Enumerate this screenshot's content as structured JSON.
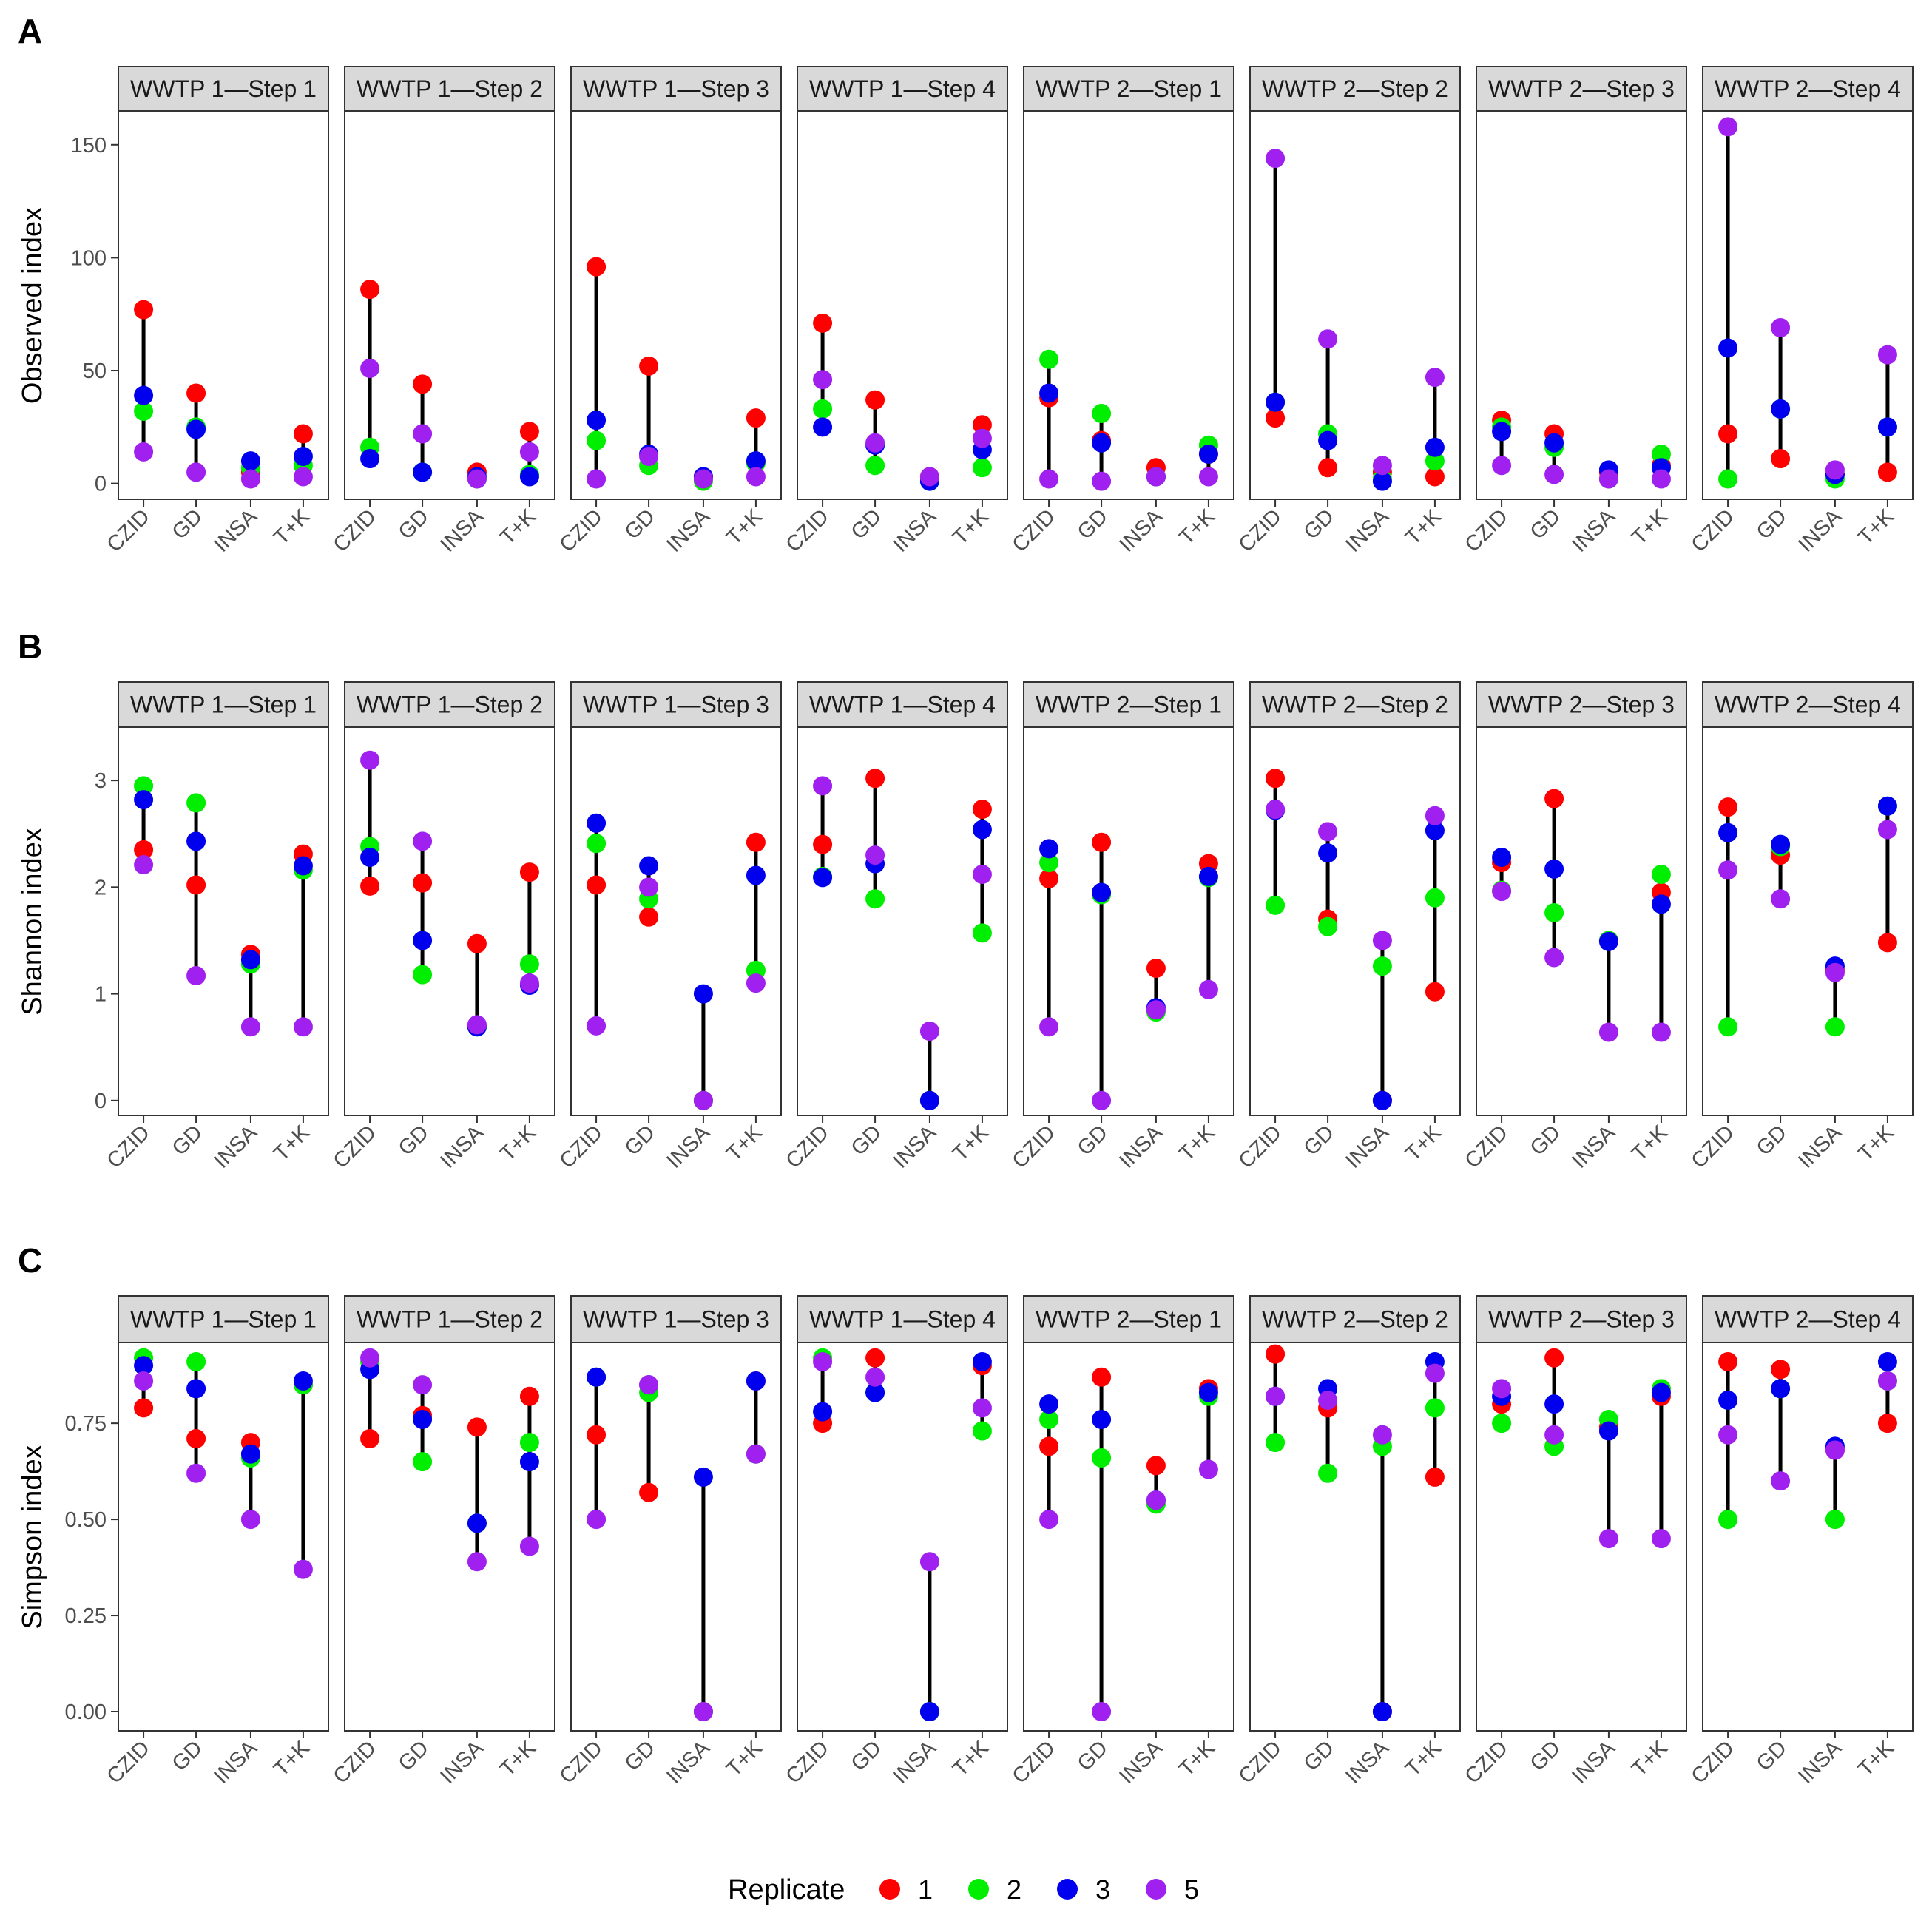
{
  "chart_data": {
    "type": "scatter",
    "facets": [
      "WWTP 1—Step 1",
      "WWTP 1—Step 2",
      "WWTP 1—Step 3",
      "WWTP 1—Step 4",
      "WWTP 2—Step 1",
      "WWTP 2—Step 2",
      "WWTP 2—Step 3",
      "WWTP 2—Step 4"
    ],
    "categories": [
      "CZID",
      "GD",
      "INSA",
      "T+K"
    ],
    "legend": {
      "title": "Replicate",
      "position": "bottom",
      "items": [
        {
          "label": "1",
          "color": "#ff0000"
        },
        {
          "label": "2",
          "color": "#00ee00"
        },
        {
          "label": "3",
          "color": "#0000ee"
        },
        {
          "label": "5",
          "color": "#a020f0"
        }
      ]
    },
    "rows": [
      {
        "letter": "A",
        "ylabel": "Observed index",
        "ylim": [
          -7,
          165
        ],
        "yticks": [
          0,
          50,
          100,
          150
        ],
        "ytick_labels": [
          "0",
          "50",
          "100",
          "150"
        ],
        "data": [
          [
            [
              77,
              32,
              39,
              14
            ],
            [
              40,
              25,
              24,
              5
            ],
            [
              5,
              7,
              10,
              2
            ],
            [
              22,
              8,
              12,
              3
            ]
          ],
          [
            [
              86,
              16,
              11,
              51
            ],
            [
              44,
              5,
              5,
              22
            ],
            [
              5,
              2,
              3,
              2
            ],
            [
              23,
              4,
              3,
              14
            ]
          ],
          [
            [
              96,
              19,
              28,
              2
            ],
            [
              52,
              8,
              13,
              12
            ],
            [
              3,
              1,
              3,
              2
            ],
            [
              29,
              9,
              10,
              3
            ]
          ],
          [
            [
              71,
              33,
              25,
              46
            ],
            [
              37,
              8,
              17,
              18
            ],
            [
              3,
              1,
              1,
              3
            ],
            [
              26,
              7,
              15,
              20
            ]
          ],
          [
            [
              38,
              55,
              40,
              2
            ],
            [
              19,
              31,
              18,
              1
            ],
            [
              7,
              3,
              3,
              3
            ],
            [
              13,
              17,
              13,
              3
            ]
          ],
          [
            [
              29,
              36,
              36,
              144
            ],
            [
              7,
              22,
              19,
              64
            ],
            [
              5,
              2,
              1,
              8
            ],
            [
              3,
              10,
              16,
              47
            ]
          ],
          [
            [
              28,
              25,
              23,
              8
            ],
            [
              22,
              16,
              18,
              4
            ],
            [
              5,
              2,
              6,
              2
            ],
            [
              8,
              13,
              7,
              2
            ]
          ],
          [
            [
              22,
              2,
              60,
              158
            ],
            [
              11,
              33,
              33,
              69
            ],
            [
              4,
              2,
              4,
              6
            ],
            [
              5,
              25,
              25,
              57
            ]
          ]
        ]
      },
      {
        "letter": "B",
        "ylabel": "Shannon index",
        "ylim": [
          -0.14,
          3.5
        ],
        "yticks": [
          0,
          1,
          2,
          3
        ],
        "ytick_labels": [
          "0",
          "1",
          "2",
          "3"
        ],
        "data": [
          [
            [
              2.35,
              2.95,
              2.82,
              2.21
            ],
            [
              2.02,
              2.79,
              2.43,
              1.17
            ],
            [
              1.37,
              1.28,
              1.32,
              0.69
            ],
            [
              2.31,
              2.16,
              2.2,
              0.69
            ]
          ],
          [
            [
              2.01,
              2.38,
              2.28,
              3.19
            ],
            [
              2.04,
              1.18,
              1.5,
              2.43
            ],
            [
              1.47,
              0.69,
              0.69,
              0.71
            ],
            [
              2.14,
              1.28,
              1.08,
              1.1
            ]
          ],
          [
            [
              2.02,
              2.41,
              2.6,
              0.7
            ],
            [
              1.72,
              1.89,
              2.2,
              2.0
            ],
            [
              0.0,
              0.0,
              1.0,
              0.0
            ],
            [
              2.42,
              1.22,
              2.11,
              1.1
            ]
          ],
          [
            [
              2.4,
              2.1,
              2.09,
              2.95
            ],
            [
              3.02,
              1.89,
              2.22,
              2.3
            ],
            [
              0.0,
              0.0,
              0.0,
              0.65
            ],
            [
              2.73,
              1.57,
              2.54,
              2.12
            ]
          ],
          [
            [
              2.08,
              2.23,
              2.36,
              0.69
            ],
            [
              2.42,
              1.93,
              1.95,
              0.0
            ],
            [
              1.24,
              0.83,
              0.87,
              0.85
            ],
            [
              2.22,
              2.09,
              2.1,
              1.04
            ]
          ],
          [
            [
              3.02,
              1.83,
              2.72,
              2.73
            ],
            [
              1.7,
              1.63,
              2.32,
              2.52
            ],
            [
              0.0,
              1.26,
              0.0,
              1.5
            ],
            [
              1.02,
              1.9,
              2.53,
              2.67
            ]
          ],
          [
            [
              2.23,
              1.97,
              2.28,
              1.96
            ],
            [
              2.83,
              1.76,
              2.17,
              1.34
            ],
            [
              1.5,
              1.5,
              1.49,
              0.64
            ],
            [
              1.95,
              2.12,
              1.84,
              0.64
            ]
          ],
          [
            [
              2.75,
              0.69,
              2.51,
              2.16
            ],
            [
              2.3,
              2.38,
              2.4,
              1.89
            ],
            [
              1.22,
              0.69,
              1.26,
              1.2
            ],
            [
              1.48,
              2.76,
              2.76,
              2.54
            ]
          ]
        ]
      },
      {
        "letter": "C",
        "ylabel": "Simpson index",
        "ylim": [
          -0.05,
          0.96
        ],
        "yticks": [
          0.0,
          0.25,
          0.5,
          0.75
        ],
        "ytick_labels": [
          "0.00",
          "0.25",
          "0.50",
          "0.75"
        ],
        "data": [
          [
            [
              0.79,
              0.92,
              0.9,
              0.86
            ],
            [
              0.71,
              0.91,
              0.84,
              0.62
            ],
            [
              0.7,
              0.66,
              0.67,
              0.5
            ],
            [
              0.85,
              0.85,
              0.86,
              0.37
            ]
          ],
          [
            [
              0.71,
              0.91,
              0.89,
              0.92
            ],
            [
              0.77,
              0.65,
              0.76,
              0.85
            ],
            [
              0.74,
              0.49,
              0.49,
              0.39
            ],
            [
              0.82,
              0.7,
              0.65,
              0.43
            ]
          ],
          [
            [
              0.72,
              0.87,
              0.87,
              0.5
            ],
            [
              0.57,
              0.83,
              0.85,
              0.85
            ],
            [
              0.0,
              0.0,
              0.61,
              0.0
            ],
            [
              0.86,
              0.67,
              0.86,
              0.67
            ]
          ],
          [
            [
              0.75,
              0.92,
              0.78,
              0.91
            ],
            [
              0.92,
              0.83,
              0.83,
              0.87
            ],
            [
              0.0,
              0.0,
              0.0,
              0.39
            ],
            [
              0.9,
              0.73,
              0.91,
              0.79
            ]
          ],
          [
            [
              0.69,
              0.76,
              0.8,
              0.5
            ],
            [
              0.87,
              0.66,
              0.76,
              0.0
            ],
            [
              0.64,
              0.54,
              0.55,
              0.55
            ],
            [
              0.84,
              0.82,
              0.83,
              0.63
            ]
          ],
          [
            [
              0.93,
              0.7,
              0.82,
              0.82
            ],
            [
              0.79,
              0.62,
              0.84,
              0.81
            ],
            [
              0.0,
              0.69,
              0.0,
              0.72
            ],
            [
              0.61,
              0.79,
              0.91,
              0.88
            ]
          ],
          [
            [
              0.8,
              0.75,
              0.82,
              0.84
            ],
            [
              0.92,
              0.69,
              0.8,
              0.72
            ],
            [
              0.74,
              0.76,
              0.73,
              0.45
            ],
            [
              0.82,
              0.84,
              0.83,
              0.45
            ]
          ],
          [
            [
              0.91,
              0.5,
              0.81,
              0.72
            ],
            [
              0.89,
              0.84,
              0.84,
              0.6
            ],
            [
              0.68,
              0.5,
              0.69,
              0.68
            ],
            [
              0.75,
              0.86,
              0.91,
              0.86
            ]
          ]
        ]
      }
    ]
  }
}
